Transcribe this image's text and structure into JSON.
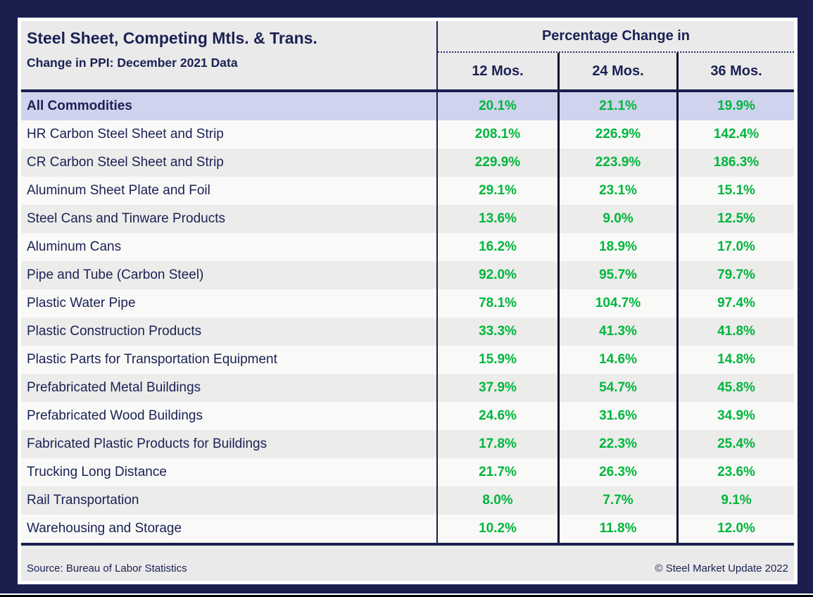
{
  "chart_data": {
    "type": "table",
    "title": "Steel Sheet, Competing Mtls. & Trans.",
    "subtitle": "Change in PPI: December 2021 Data",
    "column_group_label": "Percentage Change in",
    "columns": [
      "12 Mos.",
      "24 Mos.",
      "36 Mos."
    ],
    "value_unit": "%",
    "rows": [
      {
        "label": "All Commodities",
        "highlight": true,
        "values": [
          "20.1%",
          "21.1%",
          "19.9%"
        ]
      },
      {
        "label": "HR Carbon Steel Sheet and Strip",
        "highlight": false,
        "values": [
          "208.1%",
          "226.9%",
          "142.4%"
        ]
      },
      {
        "label": "CR Carbon Steel Sheet and Strip",
        "highlight": false,
        "values": [
          "229.9%",
          "223.9%",
          "186.3%"
        ]
      },
      {
        "label": "Aluminum Sheet Plate and Foil",
        "highlight": false,
        "values": [
          "29.1%",
          "23.1%",
          "15.1%"
        ]
      },
      {
        "label": "Steel Cans and Tinware Products",
        "highlight": false,
        "values": [
          "13.6%",
          "9.0%",
          "12.5%"
        ]
      },
      {
        "label": "Aluminum Cans",
        "highlight": false,
        "values": [
          "16.2%",
          "18.9%",
          "17.0%"
        ]
      },
      {
        "label": "Pipe and Tube (Carbon Steel)",
        "highlight": false,
        "values": [
          "92.0%",
          "95.7%",
          "79.7%"
        ]
      },
      {
        "label": "Plastic Water Pipe",
        "highlight": false,
        "values": [
          "78.1%",
          "104.7%",
          "97.4%"
        ]
      },
      {
        "label": "Plastic Construction Products",
        "highlight": false,
        "values": [
          "33.3%",
          "41.3%",
          "41.8%"
        ]
      },
      {
        "label": "Plastic Parts for Transportation Equipment",
        "highlight": false,
        "values": [
          "15.9%",
          "14.6%",
          "14.8%"
        ]
      },
      {
        "label": "Prefabricated Metal Buildings",
        "highlight": false,
        "values": [
          "37.9%",
          "54.7%",
          "45.8%"
        ]
      },
      {
        "label": "Prefabricated Wood Buildings",
        "highlight": false,
        "values": [
          "24.6%",
          "31.6%",
          "34.9%"
        ]
      },
      {
        "label": "Fabricated Plastic Products for Buildings",
        "highlight": false,
        "values": [
          "17.8%",
          "22.3%",
          "25.4%"
        ]
      },
      {
        "label": "Trucking Long Distance",
        "highlight": false,
        "values": [
          "21.7%",
          "26.3%",
          "23.6%"
        ]
      },
      {
        "label": "Rail Transportation",
        "highlight": false,
        "values": [
          "8.0%",
          "7.7%",
          "9.1%"
        ]
      },
      {
        "label": "Warehousing and Storage",
        "highlight": false,
        "values": [
          "10.2%",
          "11.8%",
          "12.0%"
        ]
      }
    ],
    "layout_hints": {
      "highlight_row": "All Commodities",
      "value_color": "#00b63c",
      "frame_color": "#1a1f4e",
      "highlight_color": "#cfd3ee"
    }
  },
  "footer": {
    "source": "Source: Bureau of Labor Statistics",
    "copyright": "© Steel Market Update 2022"
  }
}
